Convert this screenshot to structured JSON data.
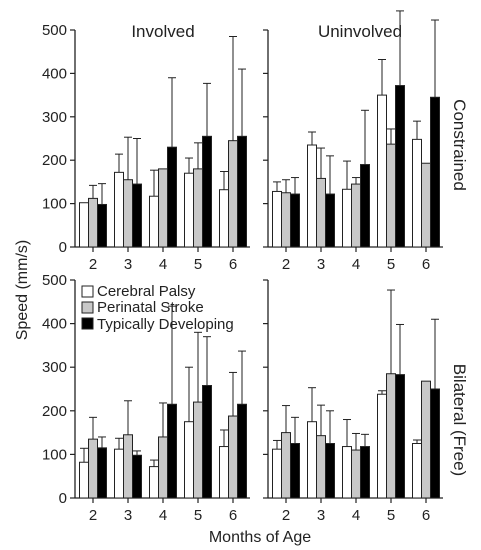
{
  "colors": {
    "cerebral": "#ffffff",
    "perinatal": "#c8c8c8",
    "typical": "#000000",
    "axis": "#222222"
  },
  "chart_data": {
    "type": "bar",
    "ylabel": "Speed (mm/s)",
    "xlabel": "Months of Age",
    "ylim": [
      0,
      500
    ],
    "yticks": [
      0,
      100,
      200,
      300,
      400,
      500
    ],
    "categories": [
      "2",
      "3",
      "4",
      "5",
      "6"
    ],
    "legend": {
      "placement": "left, between rows",
      "entries": [
        "Cerebral Palsy",
        "Perinatal Stroke",
        "Typically Developing"
      ]
    },
    "columns": [
      "Involved",
      "Uninvolved"
    ],
    "rows": [
      "Constrained",
      "Bilateral (Free)"
    ],
    "panels": [
      {
        "row": "Constrained",
        "column": "Involved",
        "series": [
          {
            "name": "Cerebral Palsy",
            "values": [
              102,
              172,
              117,
              170,
              132
            ],
            "errors": [
              0,
              42,
              60,
              35,
              42
            ]
          },
          {
            "name": "Perinatal Stroke",
            "values": [
              112,
              155,
              180,
              180,
              245
            ],
            "errors": [
              30,
              98,
              0,
              60,
              240
            ]
          },
          {
            "name": "Typically Developing",
            "values": [
              98,
              145,
              230,
              255,
              255
            ],
            "errors": [
              48,
              105,
              160,
              122,
              155
            ]
          }
        ]
      },
      {
        "row": "Constrained",
        "column": "Uninvolved",
        "series": [
          {
            "name": "Cerebral Palsy",
            "values": [
              128,
              235,
              133,
              350,
              248
            ],
            "errors": [
              22,
              30,
              65,
              82,
              42
            ]
          },
          {
            "name": "Perinatal Stroke",
            "values": [
              125,
              158,
              145,
              237,
              193
            ],
            "errors": [
              30,
              70,
              15,
              35,
              0
            ]
          },
          {
            "name": "Typically Developing",
            "values": [
              122,
              122,
              190,
              372,
              345
            ],
            "errors": [
              38,
              88,
              125,
              172,
              178
            ]
          }
        ]
      },
      {
        "row": "Bilateral (Free)",
        "column": "Involved",
        "series": [
          {
            "name": "Cerebral Palsy",
            "values": [
              82,
              112,
              72,
              175,
              118
            ],
            "errors": [
              32,
              25,
              15,
              125,
              38
            ]
          },
          {
            "name": "Perinatal Stroke",
            "values": [
              135,
              145,
              140,
              220,
              188
            ],
            "errors": [
              50,
              78,
              78,
              160,
              100
            ]
          },
          {
            "name": "Typically Developing",
            "values": [
              115,
              98,
              215,
              258,
              215
            ],
            "errors": [
              25,
              10,
              225,
              112,
              122
            ]
          }
        ]
      },
      {
        "row": "Bilateral (Free)",
        "column": "Uninvolved",
        "series": [
          {
            "name": "Cerebral Palsy",
            "values": [
              112,
              175,
              118,
              238,
              125
            ],
            "errors": [
              20,
              78,
              62,
              8,
              8
            ]
          },
          {
            "name": "Perinatal Stroke",
            "values": [
              150,
              143,
              110,
              285,
              268
            ],
            "errors": [
              62,
              70,
              38,
              192,
              0
            ]
          },
          {
            "name": "Typically Developing",
            "values": [
              125,
              125,
              118,
              283,
              250
            ],
            "errors": [
              60,
              75,
              28,
              115,
              160
            ]
          }
        ]
      }
    ]
  }
}
